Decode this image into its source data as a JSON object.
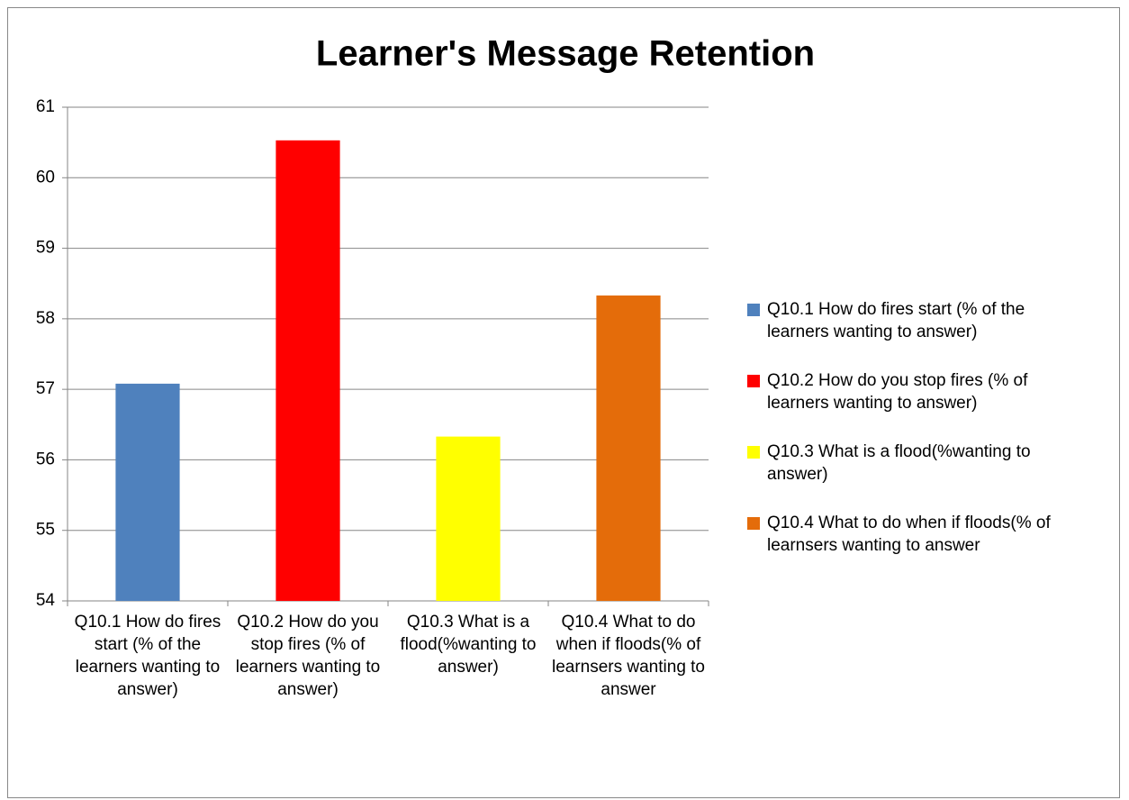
{
  "chart_data": {
    "type": "bar",
    "title": "Learner's Message Retention",
    "categories": [
      "Q10.1 How do fires start (% of the learners wanting to answer)",
      "Q10.2 How do you stop fires (% of learners wanting to answer)",
      "Q10.3 What is a flood(%wanting to answer)",
      "Q10.4 What to do when if floods(% of learnsers wanting to answer"
    ],
    "values": [
      57.08,
      60.53,
      56.33,
      58.33
    ],
    "colors": [
      "#4f81bd",
      "#ff0000",
      "#ffff00",
      "#e46c0a"
    ],
    "ylim": [
      54,
      61
    ],
    "yticks": [
      54,
      55,
      56,
      57,
      58,
      59,
      60,
      61
    ],
    "grid": true,
    "legend": "right"
  }
}
